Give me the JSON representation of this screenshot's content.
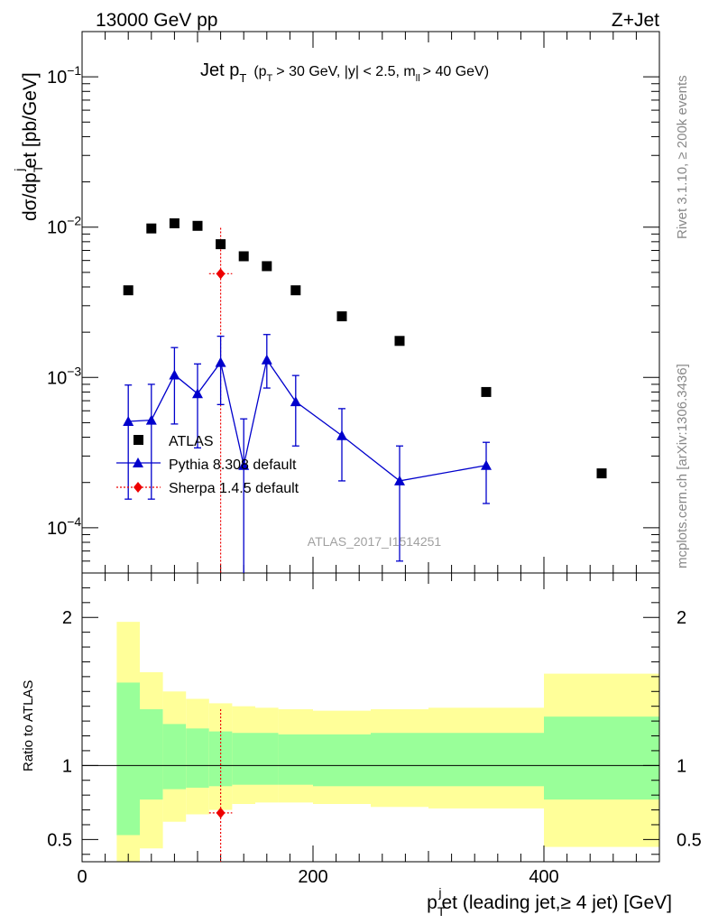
{
  "header": {
    "left": "13000 GeV pp",
    "right": "Z+Jet"
  },
  "side": {
    "rivet": "Rivet 3.1.10, ≥ 200k events",
    "mcplots": "mcplots.cern.ch [arXiv:1306.3436]"
  },
  "plot": {
    "title_main": "Jet p",
    "title_sub": "T",
    "title_cut1": "(p",
    "title_cut2": "> 30 GeV, |y| < 2.5, m",
    "title_cut_sub": "ll",
    "title_cut3": "> 40 GeV)",
    "ylabel": "dσ/dp",
    "ylabel_sub": "T",
    "ylabel_sup": "j",
    "ylabel_tail": "et [pb/GeV]",
    "watermark": "ATLAS_2017_I1514251",
    "ratio_ylabel": "Ratio to ATLAS",
    "xlabel_head": "p",
    "xlabel_sub": "T",
    "xlabel_sup": "j",
    "xlabel_tail": "et (leading jet,≥ 4 jet) [GeV]"
  },
  "legend": {
    "atlas": "ATLAS",
    "pythia": "Pythia 8.308 default",
    "sherpa": "Sherpa 1.4.5 default"
  },
  "colors": {
    "atlas": "#000000",
    "pythia": "#0000cc",
    "sherpa": "#ee0000",
    "band_inner": "#99ff99",
    "band_outer": "#ffff99"
  },
  "chart_data": [
    {
      "type": "scatter",
      "panel": "main",
      "yscale": "log",
      "xlim": [
        0,
        500
      ],
      "ylim": [
        5e-05,
        0.2
      ],
      "yticks": [
        {
          "value": 0.1,
          "base": "10",
          "exp": "−1"
        },
        {
          "value": 0.01,
          "base": "10",
          "exp": "−2"
        },
        {
          "value": 0.001,
          "base": "10",
          "exp": "−3"
        },
        {
          "value": 0.0001,
          "base": "10",
          "exp": "−4"
        }
      ],
      "series": [
        {
          "name": "ATLAS",
          "marker": "square",
          "x": [
            40,
            60,
            80,
            100,
            120,
            140,
            160,
            185,
            225,
            275,
            350,
            450
          ],
          "y": [
            0.0038,
            0.0098,
            0.0106,
            0.0102,
            0.0077,
            0.0064,
            0.0055,
            0.0038,
            0.00255,
            0.00175,
            0.0008,
            0.00023
          ]
        },
        {
          "name": "Pythia 8.308 default",
          "marker": "triangle",
          "line": true,
          "x": [
            40,
            60,
            80,
            100,
            120,
            140,
            160,
            185,
            225,
            275,
            350
          ],
          "xerr": [
            10,
            10,
            10,
            10,
            10,
            10,
            10,
            15,
            25,
            25,
            50
          ],
          "y": [
            0.00051,
            0.00052,
            0.00104,
            0.00078,
            0.00126,
            0.00026,
            0.00131,
            0.00069,
            0.00041,
            0.000205,
            0.00026
          ],
          "ylow": [
            0.000155,
            0.000155,
            0.00049,
            0.00034,
            0.00066,
            4e-05,
            0.00085,
            0.00035,
            0.000205,
            6e-05,
            0.000145
          ],
          "yhigh": [
            0.00089,
            0.0009,
            0.00158,
            0.00123,
            0.00188,
            0.00053,
            0.00193,
            0.00103,
            0.00062,
            0.00035,
            0.00037
          ]
        },
        {
          "name": "Sherpa 1.4.5 default",
          "marker": "diamond",
          "x": [
            120
          ],
          "xerr": [
            10
          ],
          "y": [
            0.0049
          ],
          "ylow": [
            1e-05
          ],
          "yhigh": [
            0.0099
          ]
        }
      ]
    },
    {
      "type": "area",
      "panel": "ratio",
      "xlim": [
        0,
        500
      ],
      "ylim": [
        0.35,
        2.3
      ],
      "yticks": [
        0.5,
        1,
        2
      ],
      "xticks": [
        0,
        200,
        400
      ],
      "reference": 1,
      "bins": [
        {
          "x0": 30,
          "x1": 50,
          "inner": [
            0.53,
            1.56
          ],
          "outer": [
            0.3,
            1.97
          ]
        },
        {
          "x0": 50,
          "x1": 70,
          "inner": [
            0.77,
            1.38
          ],
          "outer": [
            0.44,
            1.63
          ]
        },
        {
          "x0": 70,
          "x1": 90,
          "inner": [
            0.84,
            1.28
          ],
          "outer": [
            0.62,
            1.5
          ]
        },
        {
          "x0": 90,
          "x1": 110,
          "inner": [
            0.85,
            1.25
          ],
          "outer": [
            0.67,
            1.45
          ]
        },
        {
          "x0": 110,
          "x1": 130,
          "inner": [
            0.86,
            1.23
          ],
          "outer": [
            0.7,
            1.42
          ]
        },
        {
          "x0": 130,
          "x1": 150,
          "inner": [
            0.87,
            1.22
          ],
          "outer": [
            0.74,
            1.4
          ]
        },
        {
          "x0": 150,
          "x1": 170,
          "inner": [
            0.87,
            1.22
          ],
          "outer": [
            0.75,
            1.39
          ]
        },
        {
          "x0": 170,
          "x1": 200,
          "inner": [
            0.87,
            1.21
          ],
          "outer": [
            0.75,
            1.38
          ]
        },
        {
          "x0": 200,
          "x1": 250,
          "inner": [
            0.86,
            1.21
          ],
          "outer": [
            0.74,
            1.37
          ]
        },
        {
          "x0": 250,
          "x1": 300,
          "inner": [
            0.86,
            1.22
          ],
          "outer": [
            0.72,
            1.38
          ]
        },
        {
          "x0": 300,
          "x1": 400,
          "inner": [
            0.86,
            1.22
          ],
          "outer": [
            0.71,
            1.39
          ]
        },
        {
          "x0": 400,
          "x1": 500,
          "inner": [
            0.77,
            1.33
          ],
          "outer": [
            0.45,
            1.62
          ]
        }
      ],
      "series": [
        {
          "name": "Sherpa 1.4.5 default",
          "x": [
            120
          ],
          "xerr": [
            10
          ],
          "y": [
            0.68
          ],
          "ylow": [
            0.3
          ],
          "yhigh": [
            1.38
          ]
        }
      ]
    }
  ]
}
